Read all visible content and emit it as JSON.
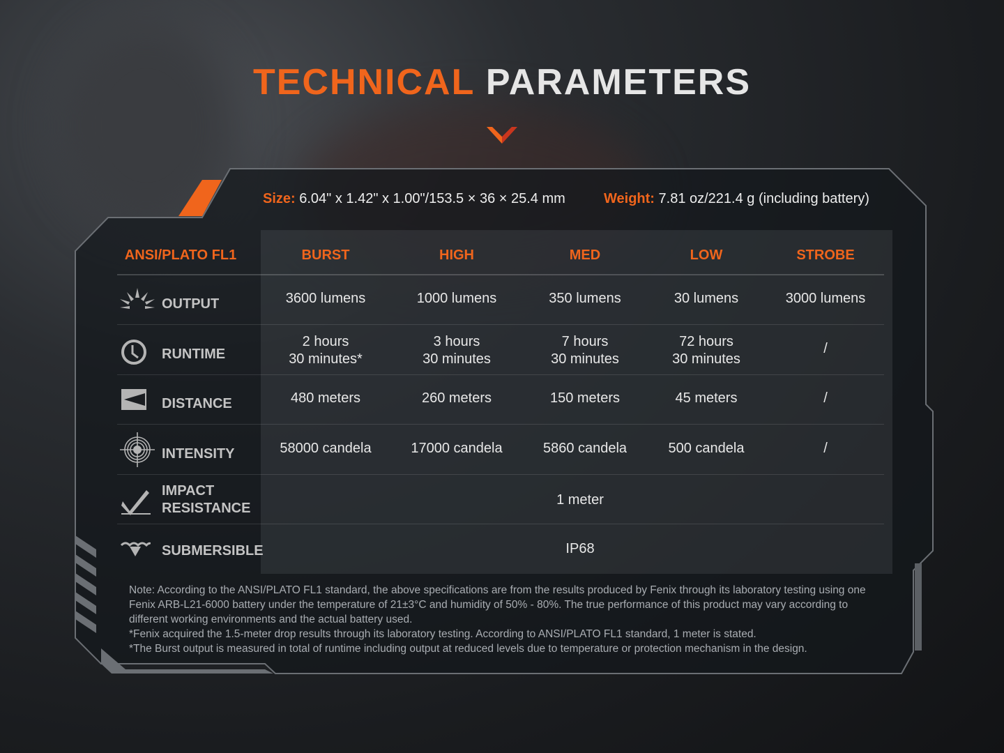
{
  "title": {
    "part1": "TECHNICAL",
    "part2": "PARAMETERS"
  },
  "specs": {
    "size_label": "Size:",
    "size_value": "6.04\" x 1.42\" x 1.00\"/153.5 × 36 × 25.4 mm",
    "weight_label": "Weight:",
    "weight_value": "7.81 oz/221.4 g (including battery)"
  },
  "colors": {
    "accent": "#f0651c",
    "text": "#e8e8e8",
    "label": "#c4c4c4"
  },
  "table": {
    "corner": "ANSI/PLATO FL1",
    "columns": [
      "BURST",
      "HIGH",
      "MED",
      "LOW",
      "STROBE"
    ],
    "rows": [
      {
        "label": "OUTPUT",
        "icon": "sun-rays-icon",
        "values": [
          "3600 lumens",
          "1000 lumens",
          "350 lumens",
          "30 lumens",
          "3000 lumens"
        ]
      },
      {
        "label": "RUNTIME",
        "icon": "clock-icon",
        "values": [
          "2 hours\n30 minutes*",
          "3 hours\n30 minutes",
          "7 hours\n30 minutes",
          "72 hours\n30 minutes",
          "/"
        ]
      },
      {
        "label": "DISTANCE",
        "icon": "distance-beam-icon",
        "values": [
          "480 meters",
          "260 meters",
          "150 meters",
          "45 meters",
          "/"
        ]
      },
      {
        "label": "INTENSITY",
        "icon": "target-icon",
        "values": [
          "58000 candela",
          "17000 candela",
          "5860 candela",
          "500 candela",
          "/"
        ]
      }
    ],
    "impact": {
      "label1": "IMPACT",
      "label2": "RESISTANCE",
      "icon": "impact-check-icon",
      "value": "1 meter"
    },
    "submersible": {
      "label": "SUBMERSIBLE",
      "icon": "water-drop-icon",
      "value": "IP68"
    }
  },
  "notes": [
    "Note: According to the ANSI/PLATO FL1 standard, the above specifications are from the results produced by Fenix through its laboratory testing using one Fenix ARB-L21-6000 battery under the temperature of 21±3°C and humidity of 50% - 80%. The true performance of this product may vary according to different working environments and the actual battery used.",
    "*Fenix acquired the 1.5-meter drop results through its laboratory testing. According to ANSI/PLATO FL1 standard, 1 meter is stated.",
    "*The Burst output is measured in total of runtime including output at reduced levels due to temperature or protection mechanism in the design."
  ]
}
